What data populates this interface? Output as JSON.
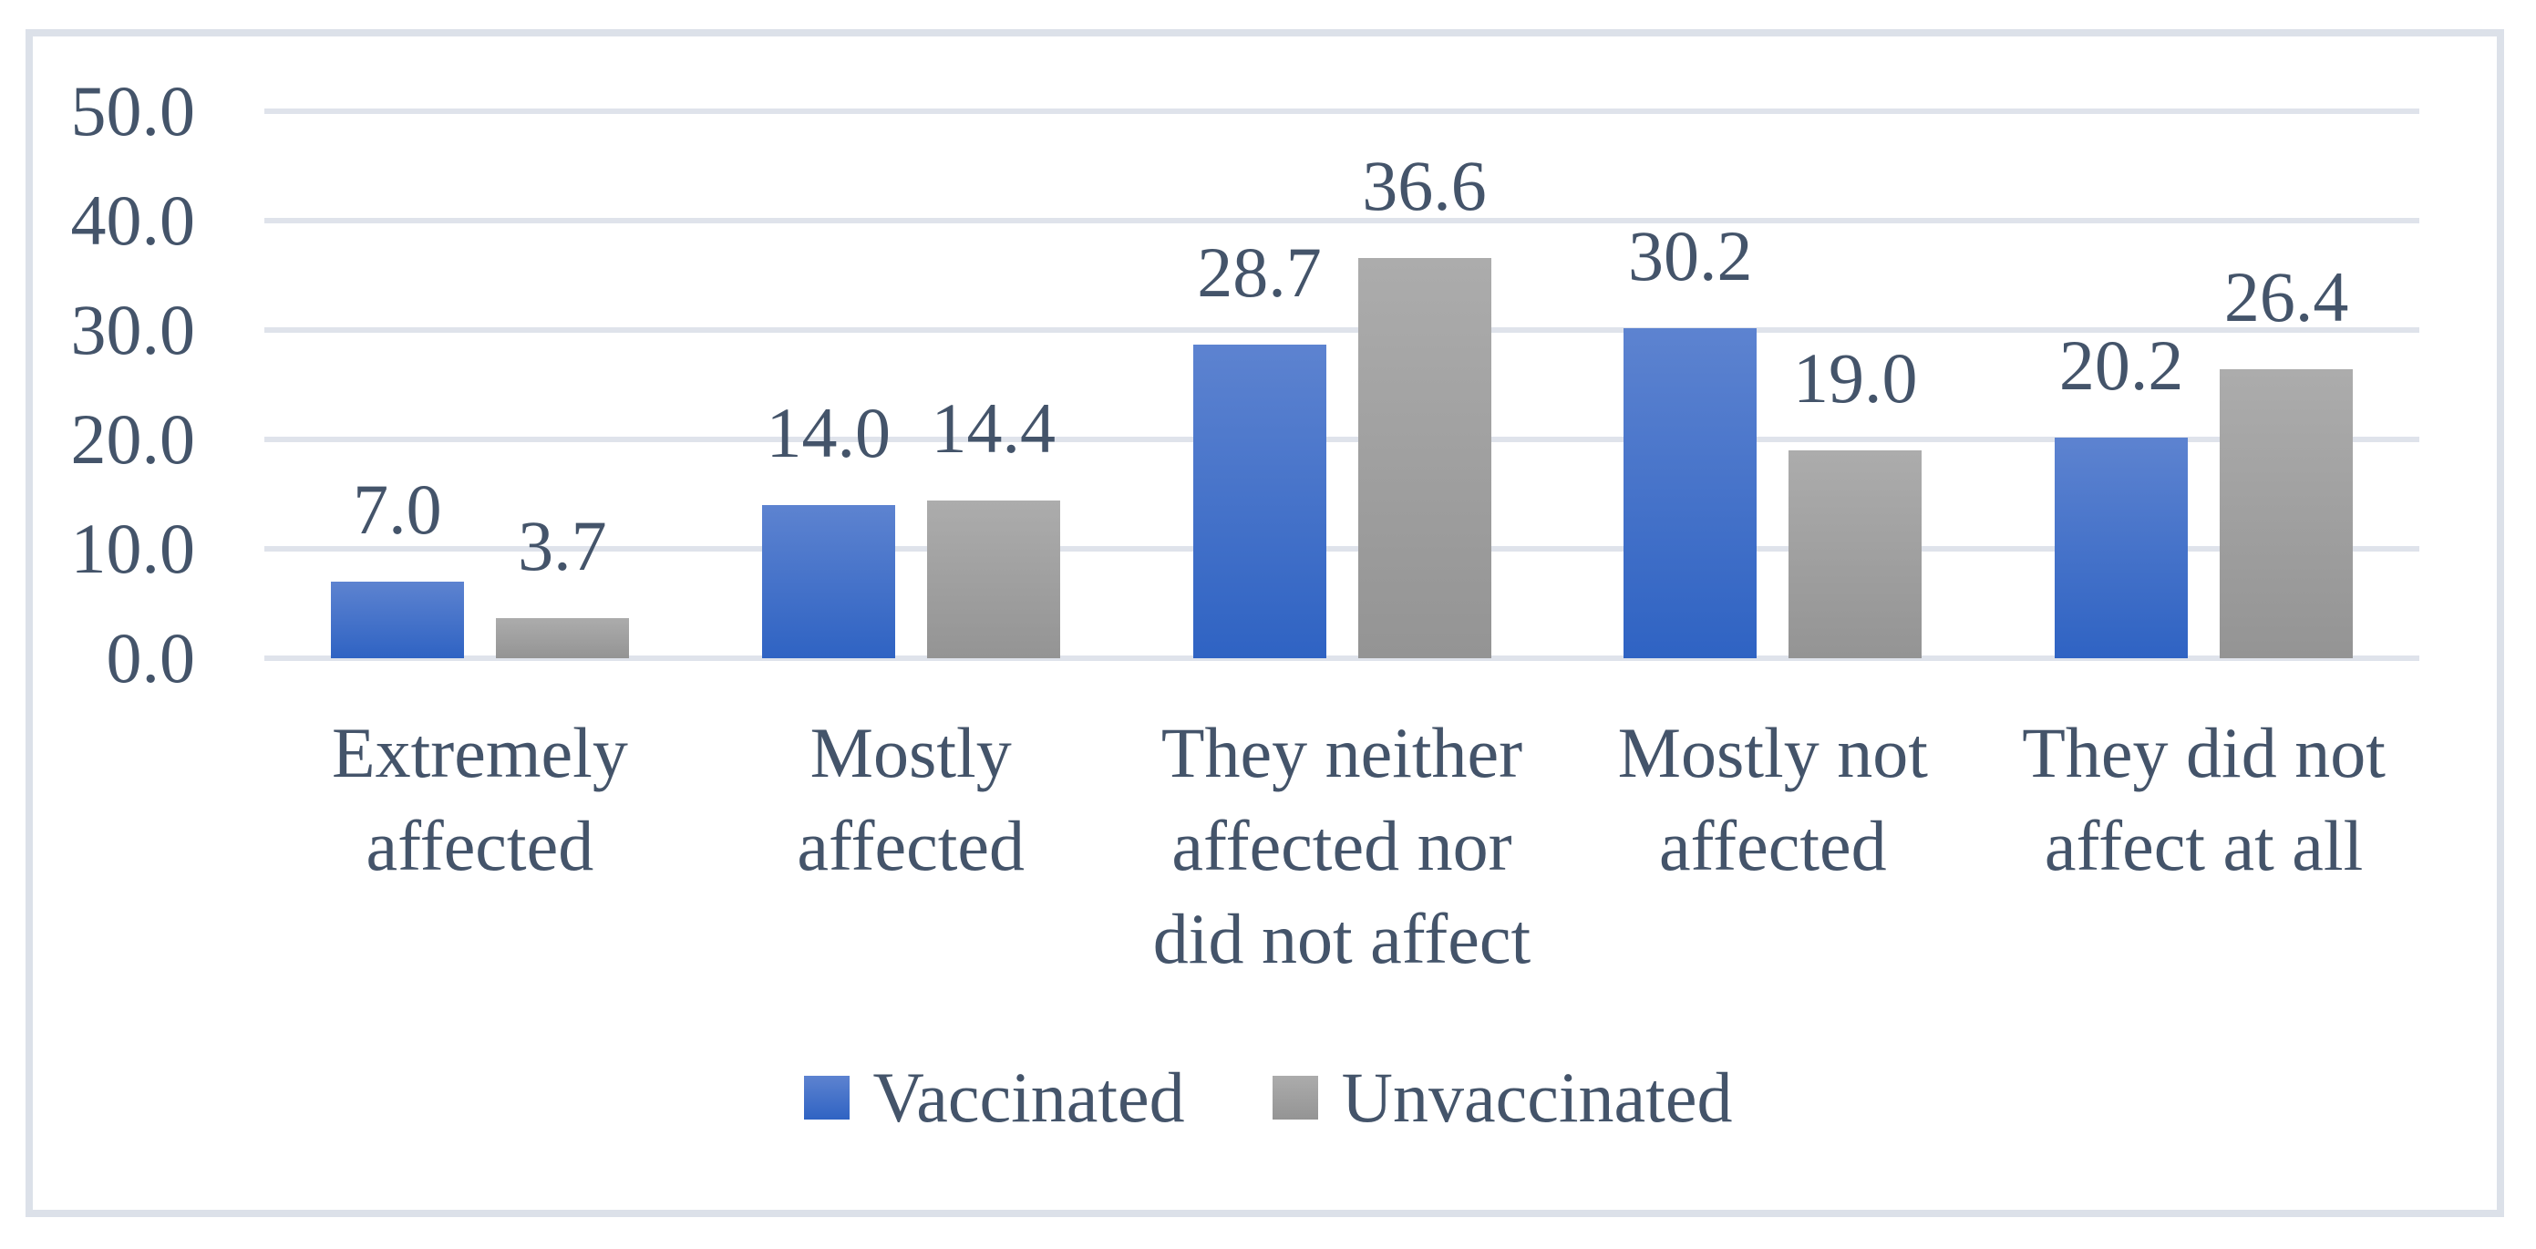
{
  "chart_data": {
    "type": "bar",
    "title": "",
    "xlabel": "",
    "ylabel": "",
    "categories": [
      "Extremely affected",
      "Mostly affected",
      "They neither affected nor did not affect",
      "Mostly not affected",
      "They did not affect at all"
    ],
    "category_lines": [
      [
        "Extremely",
        "affected"
      ],
      [
        "Mostly",
        "affected"
      ],
      [
        "They neither",
        "affected nor",
        "did not affect"
      ],
      [
        "Mostly not",
        "affected"
      ],
      [
        "They did not",
        "affect at all"
      ]
    ],
    "series": [
      {
        "name": "Vaccinated",
        "values": [
          7.0,
          14.0,
          28.7,
          30.2,
          20.2
        ],
        "value_labels": [
          "7.0",
          "14.0",
          "28.7",
          "30.2",
          "20.2"
        ],
        "color_top": "#5d83d0",
        "color_bottom": "#2f63c3"
      },
      {
        "name": "Unvaccinated",
        "values": [
          3.7,
          14.4,
          36.6,
          19.0,
          26.4
        ],
        "value_labels": [
          "3.7",
          "14.4",
          "36.6",
          "19.0",
          "26.4"
        ],
        "color_top": "#acacac",
        "color_bottom": "#949494"
      }
    ],
    "ylim": [
      0,
      50
    ],
    "ytick_step": 10,
    "ytick_labels": [
      "0.0",
      "10.0",
      "20.0",
      "30.0",
      "40.0",
      "50.0"
    ],
    "grid": true,
    "legend_position": "bottom"
  },
  "colors": {
    "text": "#44546a",
    "gridline": "#dfe3eb",
    "baseline": "#dfe3eb",
    "figure_border": "#dce1e9",
    "background": "#ffffff"
  }
}
